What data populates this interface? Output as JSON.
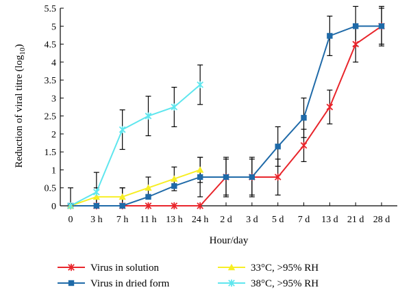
{
  "chart_data": {
    "type": "line",
    "ylabel": "Reduction of viral titre (log",
    "ylabel_sub": "10",
    "ylabel_close": ")",
    "xlabel": "Hour/day",
    "categories": [
      "0",
      "3 h",
      "7 h",
      "11 h",
      "13 h",
      "24 h",
      "2 d",
      "3 d",
      "5 d",
      "7 d",
      "13 d",
      "21 d",
      "28 d"
    ],
    "ylim": [
      0,
      5.5
    ],
    "yticks": [
      "0",
      "0.5",
      "1",
      "1.5",
      "2",
      "2.5",
      "3",
      "3.5",
      "4",
      "4.5",
      "5",
      "5.5"
    ],
    "grid": false,
    "legend_position": "bottom",
    "series": [
      {
        "name": "Virus in solution",
        "color": "#e8252b",
        "marker": "asterisk",
        "values": [
          0,
          0,
          0,
          0,
          0,
          0,
          0.8,
          0.8,
          0.8,
          1.68,
          2.75,
          4.5,
          5.0
        ],
        "errors": [
          0.5,
          0.5,
          0.5,
          null,
          null,
          null,
          0.5,
          0.5,
          0.5,
          0.45,
          0.47,
          0.5,
          0.5
        ]
      },
      {
        "name": "Virus in dried form",
        "color": "#1f6aa8",
        "marker": "square",
        "values": [
          0,
          0,
          0,
          0.25,
          0.55,
          0.8,
          0.8,
          0.8,
          1.65,
          2.45,
          4.73,
          5.0,
          5.0
        ],
        "errors": [
          null,
          null,
          null,
          null,
          null,
          0.55,
          0.55,
          0.55,
          0.55,
          0.55,
          0.55,
          0.55,
          0.55
        ]
      },
      {
        "name": "33°C, >95% RH",
        "color": "#f7ee25",
        "marker": "triangle",
        "values": [
          0,
          0.25,
          0.25,
          0.5,
          0.75,
          1.0,
          null,
          null,
          null,
          null,
          null,
          null,
          null
        ],
        "errors": [
          null,
          null,
          0.25,
          0.3,
          0.33,
          0.35,
          null,
          null,
          null,
          null,
          null,
          null,
          null
        ]
      },
      {
        "name": "38°C, >95% RH",
        "color": "#5ee6ee",
        "marker": "asterisk",
        "values": [
          0,
          0.38,
          2.12,
          2.5,
          2.75,
          3.37,
          null,
          null,
          null,
          null,
          null,
          null,
          null
        ],
        "errors": [
          null,
          0.55,
          0.55,
          0.55,
          0.55,
          0.55,
          null,
          null,
          null,
          null,
          null,
          null,
          null
        ]
      }
    ]
  }
}
